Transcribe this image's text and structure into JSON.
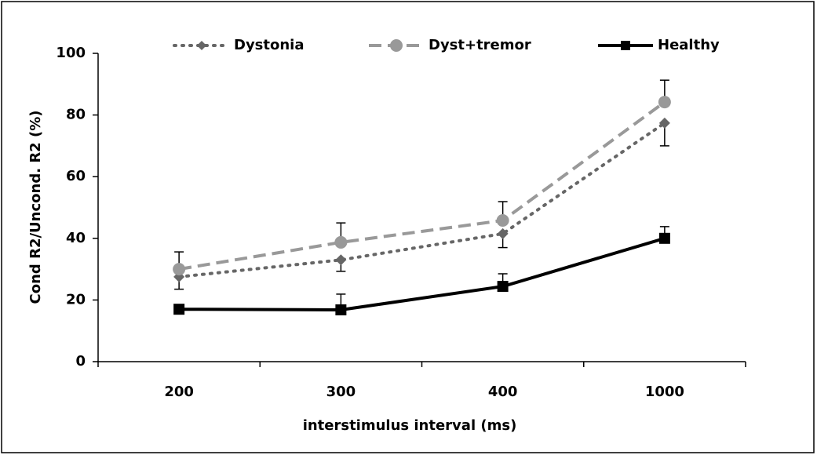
{
  "chart_data": {
    "type": "line",
    "x_label": "interstimulus interval (ms)",
    "y_label": "Cond R2/Uncond. R2 (%)",
    "categories": [
      "200",
      "300",
      "400",
      "1000"
    ],
    "ylim": [
      0,
      100
    ],
    "yticks": [
      0,
      20,
      40,
      60,
      80,
      100
    ],
    "grid": false,
    "legend": "top",
    "series": [
      {
        "name": "Dystonia",
        "color": "#666666",
        "dash": "dotted",
        "marker": "diamond",
        "values": [
          27.5,
          33,
          41.5,
          77.4
        ],
        "errors": [
          4,
          3.7,
          4.5,
          7.4
        ],
        "error_direction": "down"
      },
      {
        "name": "Dyst+tremor",
        "color": "#999999",
        "dash": "dashed",
        "marker": "circle",
        "values": [
          30,
          38.7,
          45.8,
          84.2
        ],
        "errors": [
          5.6,
          6.3,
          6.1,
          7.1
        ],
        "error_direction": "up"
      },
      {
        "name": "Healthy",
        "color": "#000000",
        "dash": "solid",
        "marker": "square",
        "values": [
          17,
          16.8,
          24.4,
          40
        ],
        "errors": [
          1.3,
          5.1,
          4.1,
          3.8
        ],
        "error_direction": "up"
      }
    ]
  }
}
